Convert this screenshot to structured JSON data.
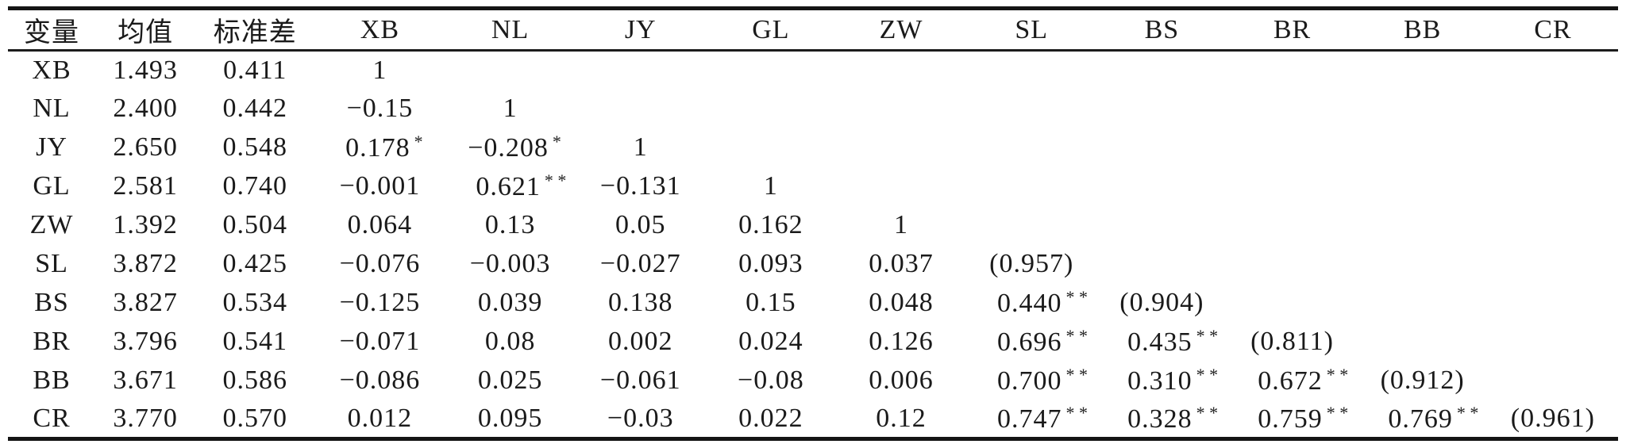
{
  "table": {
    "headers": [
      "变量",
      "均值",
      "标准差",
      "XB",
      "NL",
      "JY",
      "GL",
      "ZW",
      "SL",
      "BS",
      "BR",
      "BB",
      "CR"
    ],
    "rows": [
      {
        "label": "XB",
        "mean": "1.493",
        "sd": "0.411",
        "cells": [
          "1",
          "",
          "",
          "",
          "",
          "",
          "",
          "",
          "",
          ""
        ]
      },
      {
        "label": "NL",
        "mean": "2.400",
        "sd": "0.442",
        "cells": [
          "−0.15",
          "1",
          "",
          "",
          "",
          "",
          "",
          "",
          "",
          ""
        ]
      },
      {
        "label": "JY",
        "mean": "2.650",
        "sd": "0.548",
        "cells": [
          "0.178*",
          "−0.208*",
          "1",
          "",
          "",
          "",
          "",
          "",
          "",
          ""
        ]
      },
      {
        "label": "GL",
        "mean": "2.581",
        "sd": "0.740",
        "cells": [
          "−0.001",
          "0.621**",
          "−0.131",
          "1",
          "",
          "",
          "",
          "",
          "",
          ""
        ]
      },
      {
        "label": "ZW",
        "mean": "1.392",
        "sd": "0.504",
        "cells": [
          "0.064",
          "0.13",
          "0.05",
          "0.162",
          "1",
          "",
          "",
          "",
          "",
          ""
        ]
      },
      {
        "label": "SL",
        "mean": "3.872",
        "sd": "0.425",
        "cells": [
          "−0.076",
          "−0.003",
          "−0.027",
          "0.093",
          "0.037",
          "(0.957)",
          "",
          "",
          "",
          ""
        ]
      },
      {
        "label": "BS",
        "mean": "3.827",
        "sd": "0.534",
        "cells": [
          "−0.125",
          "0.039",
          "0.138",
          "0.15",
          "0.048",
          "0.440**",
          "(0.904)",
          "",
          "",
          ""
        ]
      },
      {
        "label": "BR",
        "mean": "3.796",
        "sd": "0.541",
        "cells": [
          "−0.071",
          "0.08",
          "0.002",
          "0.024",
          "0.126",
          "0.696**",
          "0.435**",
          "(0.811)",
          "",
          ""
        ]
      },
      {
        "label": "BB",
        "mean": "3.671",
        "sd": "0.586",
        "cells": [
          "−0.086",
          "0.025",
          "−0.061",
          "−0.08",
          "0.006",
          "0.700**",
          "0.310**",
          "0.672**",
          "(0.912)",
          ""
        ]
      },
      {
        "label": "CR",
        "mean": "3.770",
        "sd": "0.570",
        "cells": [
          "0.012",
          "0.095",
          "−0.03",
          "0.022",
          "0.12",
          "0.747**",
          "0.328**",
          "0.759**",
          "0.769**",
          "(0.961)"
        ]
      }
    ]
  },
  "colors": {
    "text": "#1a1a1a",
    "rule": "#141414",
    "background": "#ffffff"
  },
  "layout_meta": {
    "significance_marker_single": "*",
    "significance_marker_double": "* *",
    "diagonal_value_style": "parenthesized"
  }
}
